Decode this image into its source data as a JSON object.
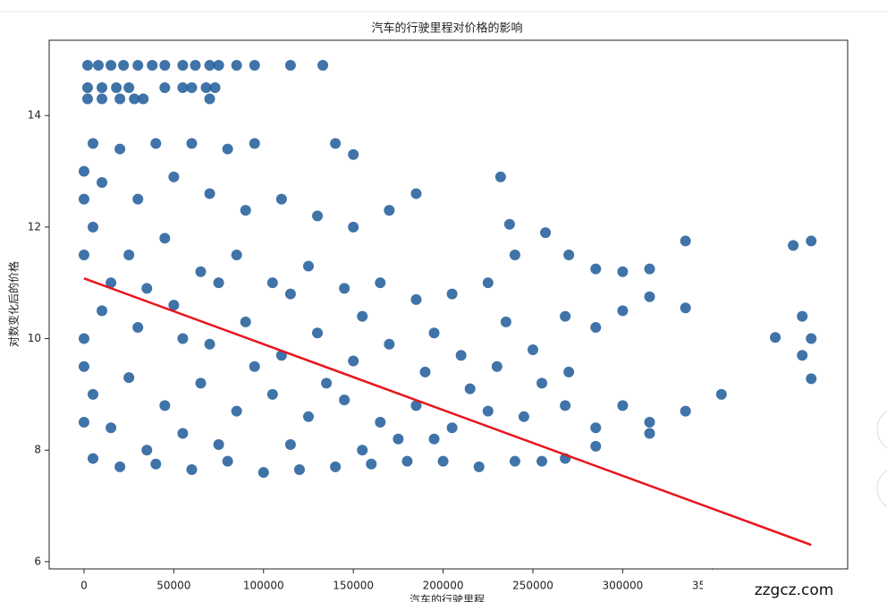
{
  "chart_data": {
    "type": "scatter",
    "title": "汽车的行驶里程对价格的影响",
    "xlabel": "汽车的行驶里程",
    "ylabel": "对数变化后的价格",
    "color": "#1f5b99",
    "x": [
      2000,
      8000,
      15000,
      22000,
      30000,
      38000,
      45000,
      55000,
      62000,
      70000,
      75000,
      85000,
      95000,
      115000,
      133000,
      2000,
      10000,
      18000,
      25000,
      45000,
      55000,
      60000,
      68000,
      73000,
      2000,
      10000,
      20000,
      28000,
      33000,
      70000,
      5000,
      20000,
      40000,
      60000,
      80000,
      95000,
      140000,
      150000,
      10000,
      30000,
      50000,
      70000,
      90000,
      110000,
      130000,
      150000,
      170000,
      185000,
      232000,
      237000,
      257000,
      5000,
      25000,
      45000,
      65000,
      85000,
      105000,
      125000,
      145000,
      165000,
      185000,
      205000,
      225000,
      240000,
      270000,
      285000,
      300000,
      315000,
      335000,
      395000,
      405000,
      10000,
      30000,
      50000,
      70000,
      90000,
      110000,
      130000,
      150000,
      170000,
      190000,
      210000,
      230000,
      250000,
      268000,
      285000,
      300000,
      315000,
      335000,
      385000,
      400000,
      405000,
      5000,
      25000,
      45000,
      65000,
      85000,
      105000,
      125000,
      145000,
      165000,
      185000,
      205000,
      225000,
      245000,
      268000,
      285000,
      300000,
      315000,
      335000,
      355000,
      400000,
      405000,
      5000,
      20000,
      40000,
      60000,
      80000,
      100000,
      120000,
      140000,
      160000,
      180000,
      200000,
      220000,
      240000,
      255000,
      268000,
      285000,
      315000,
      15000,
      35000,
      55000,
      75000,
      95000,
      115000,
      135000,
      155000,
      175000,
      195000,
      215000,
      235000,
      255000,
      270000,
      15000,
      35000,
      55000,
      75000,
      115000,
      155000,
      195000,
      0,
      0,
      0,
      0,
      0,
      0
    ],
    "values": [
      14.9,
      14.9,
      14.9,
      14.9,
      14.9,
      14.9,
      14.9,
      14.9,
      14.9,
      14.9,
      14.9,
      14.9,
      14.9,
      14.9,
      14.9,
      14.5,
      14.5,
      14.5,
      14.5,
      14.5,
      14.5,
      14.5,
      14.5,
      14.5,
      14.3,
      14.3,
      14.3,
      14.3,
      14.3,
      14.3,
      13.5,
      13.4,
      13.5,
      13.5,
      13.4,
      13.5,
      13.5,
      13.3,
      12.8,
      12.5,
      12.9,
      12.6,
      12.3,
      12.5,
      12.2,
      12.0,
      12.3,
      12.6,
      12.9,
      12.05,
      11.9,
      12.0,
      11.5,
      11.8,
      11.2,
      11.5,
      11.0,
      11.3,
      10.9,
      11.0,
      10.7,
      10.8,
      11.0,
      11.5,
      11.5,
      11.25,
      11.2,
      11.25,
      11.75,
      11.67,
      11.75,
      10.5,
      10.2,
      10.6,
      9.9,
      10.3,
      9.7,
      10.1,
      9.6,
      9.9,
      9.4,
      9.7,
      9.5,
      9.8,
      10.4,
      10.2,
      10.5,
      10.75,
      10.55,
      10.02,
      10.4,
      10.0,
      9.0,
      9.3,
      8.8,
      9.2,
      8.7,
      9.0,
      8.6,
      8.9,
      8.5,
      8.8,
      8.4,
      8.7,
      8.6,
      8.8,
      8.4,
      8.8,
      8.5,
      8.7,
      9.0,
      9.7,
      9.28,
      7.85,
      7.7,
      7.75,
      7.65,
      7.8,
      7.6,
      7.65,
      7.7,
      7.75,
      7.8,
      7.8,
      7.7,
      7.8,
      7.8,
      7.85,
      8.07,
      8.3,
      11.0,
      10.9,
      10.0,
      11.0,
      9.5,
      10.8,
      9.2,
      10.4,
      8.2,
      10.1,
      9.1,
      10.3,
      9.2,
      9.4,
      8.4,
      8.0,
      8.3,
      8.1,
      8.1,
      8.0,
      8.2,
      10.0,
      11.5,
      9.5,
      8.5,
      12.5,
      13.0
    ],
    "fit": {
      "color": "#e8141c",
      "x": [
        0,
        405000
      ],
      "values": [
        11.08,
        6.3
      ]
    },
    "xlim": [
      -19400,
      425300
    ],
    "ylim": [
      5.87,
      15.35
    ],
    "xticks": [
      0,
      50000,
      100000,
      150000,
      200000,
      250000,
      300000,
      350000
    ],
    "yticks": [
      6,
      8,
      10,
      12,
      14
    ],
    "watermark": "zzgcz.com"
  }
}
